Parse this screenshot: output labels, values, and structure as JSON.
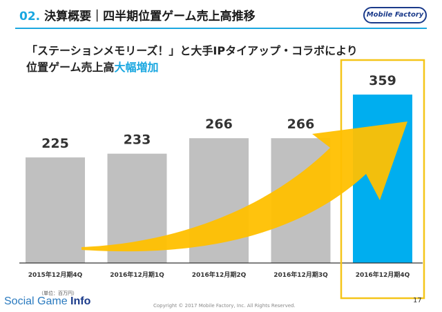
{
  "header": {
    "number": "02.",
    "title": "決算概要｜四半期位置ゲーム売上高推移",
    "logo_text": "Mobile Factory"
  },
  "subtitle": {
    "line1": "「ステーションメモリーズ！」と大手IPタイアップ・コラボにより",
    "line2_main": "位置ゲーム売上高",
    "line2_accent": "大幅増加"
  },
  "chart_data": {
    "type": "bar",
    "categories": [
      "2015年12月期4Q",
      "2016年12月期1Q",
      "2016年12月期2Q",
      "2016年12月期3Q",
      "2016年12月期4Q"
    ],
    "values": [
      225,
      233,
      266,
      266,
      359
    ],
    "highlight_index": 4,
    "unit": "（単位：百万円）",
    "ylim": [
      0,
      400
    ],
    "grid": false,
    "colors": {
      "bar": "#c0c0c0",
      "highlight": "#00aeef",
      "arrow": "#ffc000",
      "box": "#f5c518"
    }
  },
  "footer": {
    "brand_a": "Social Game ",
    "brand_b": "Info",
    "copyright": "Copyright © 2017 Mobile Factory, Inc. All Rights Reserved.",
    "page": "17"
  }
}
